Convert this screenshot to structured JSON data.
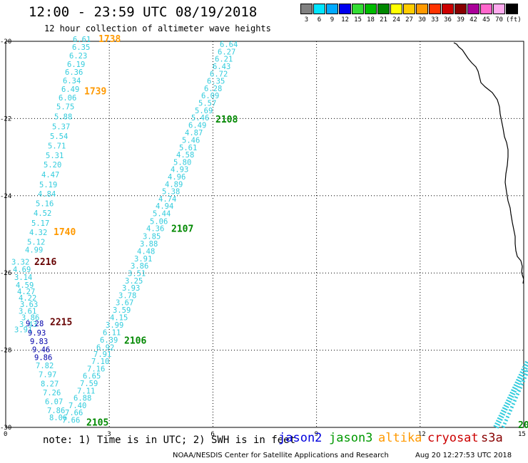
{
  "header": {
    "title": "12:00 - 23:59 UTC 08/19/2018",
    "subtitle": "12 hour collection of altimeter wave heights"
  },
  "legend": {
    "labels": [
      "3",
      "6",
      "9",
      "12",
      "15",
      "18",
      "21",
      "24",
      "27",
      "30",
      "33",
      "36",
      "39",
      "42",
      "45",
      "70",
      "(ft)"
    ],
    "colors": [
      "#808080",
      "#00e5ff",
      "#00aaff",
      "#0000ee",
      "#33dd33",
      "#00bb00",
      "#008800",
      "#ffff00",
      "#ffcc00",
      "#ff9900",
      "#ff3300",
      "#cc0000",
      "#880000",
      "#aa0099",
      "#ff66cc",
      "#ffaaee",
      "#000000"
    ]
  },
  "axes": {
    "x_ticks": [
      "0",
      "3",
      "6",
      "9",
      "12",
      "15"
    ],
    "y_ticks": [
      "20",
      "22",
      "24",
      "26",
      "28",
      "30"
    ]
  },
  "tracks": [
    {
      "id": "t1738",
      "color": "#33ccdd",
      "label": "1738",
      "label_color": "#ff9900",
      "label_lat": 20.02,
      "label_x": 138,
      "points": [
        [
          20.02,
          102,
          "6.61"
        ],
        [
          20.22,
          101,
          "6.35"
        ],
        [
          20.44,
          97,
          "6.23"
        ],
        [
          20.66,
          94,
          "6.19"
        ],
        [
          20.87,
          91,
          "6.36"
        ],
        [
          21.09,
          88,
          "6.34"
        ],
        [
          21.31,
          86,
          "6.49"
        ],
        [
          21.53,
          82,
          "6.06"
        ],
        [
          21.76,
          79,
          "5.75"
        ],
        [
          22.02,
          76,
          "5.88"
        ],
        [
          22.28,
          73,
          "5.37"
        ],
        [
          22.53,
          70,
          "5.54"
        ],
        [
          22.78,
          67,
          "5.71"
        ],
        [
          23.03,
          64,
          "5.31"
        ],
        [
          23.27,
          61,
          "5.20"
        ],
        [
          23.52,
          58,
          "4.47"
        ],
        [
          23.78,
          55,
          "5.19"
        ],
        [
          24.02,
          53,
          "4.84"
        ],
        [
          24.27,
          50,
          "5.16"
        ],
        [
          24.52,
          47,
          "4.52"
        ],
        [
          24.78,
          44,
          "5.17"
        ],
        [
          25.02,
          41,
          "4.32"
        ],
        [
          25.27,
          38,
          "5.12"
        ],
        [
          25.47,
          35,
          "4.99"
        ]
      ]
    },
    {
      "id": "t1739",
      "color": "#33ccdd",
      "label": "1739",
      "label_color": "#ff9900",
      "label_lat": 21.37,
      "label_x": 118,
      "points": []
    },
    {
      "id": "t1740",
      "color": "#33ccdd",
      "label": "1740",
      "label_color": "#ff9900",
      "label_lat": 25.02,
      "label_x": 75,
      "points": []
    },
    {
      "id": "t2108",
      "color": "#33ccdd",
      "label": "2108",
      "label_color": "#008800",
      "label_lat": 22.1,
      "label_x": 302,
      "points": [
        [
          20.15,
          308,
          "6.64"
        ],
        [
          20.34,
          305,
          "6.27"
        ],
        [
          20.53,
          301,
          "6.21"
        ],
        [
          20.72,
          298,
          "6.43"
        ],
        [
          20.91,
          294,
          "6.72"
        ],
        [
          21.1,
          290,
          "6.35"
        ],
        [
          21.29,
          286,
          "6.28"
        ],
        [
          21.48,
          282,
          "6.09"
        ],
        [
          21.67,
          278,
          "5.57"
        ],
        [
          21.86,
          273,
          "5.69"
        ],
        [
          22.05,
          268,
          "5.46"
        ],
        [
          22.24,
          264,
          "6.49"
        ],
        [
          22.44,
          259,
          "4.87"
        ],
        [
          22.63,
          255,
          "5.46"
        ],
        [
          22.82,
          251,
          "5.61"
        ],
        [
          23.01,
          247,
          "4.58"
        ],
        [
          23.2,
          243,
          "5.80"
        ],
        [
          23.39,
          239,
          "4.93"
        ],
        [
          23.58,
          235,
          "4.96"
        ],
        [
          23.77,
          231,
          "4.89"
        ],
        [
          23.96,
          227,
          "5.38"
        ],
        [
          24.15,
          222,
          "4.74"
        ],
        [
          24.34,
          218,
          "4.94"
        ],
        [
          24.53,
          214,
          "5.44"
        ],
        [
          24.73,
          210,
          "5.06"
        ],
        [
          24.92,
          205,
          "4.36"
        ]
      ]
    },
    {
      "id": "t2107",
      "color": "#33ccdd",
      "label": "2107",
      "label_color": "#008800",
      "label_lat": 24.94,
      "label_x": 240,
      "points": [
        [
          25.12,
          200,
          "3.85"
        ],
        [
          25.31,
          196,
          "3.88"
        ],
        [
          25.51,
          192,
          "4.48"
        ],
        [
          25.7,
          188,
          "3.91"
        ],
        [
          25.89,
          183,
          "3.86"
        ],
        [
          26.08,
          179,
          "3.51"
        ],
        [
          26.27,
          175,
          "3.25"
        ],
        [
          26.46,
          171,
          "3.93"
        ],
        [
          26.65,
          166,
          "3.78"
        ],
        [
          26.84,
          162,
          "3.67"
        ],
        [
          27.03,
          158,
          "3.59"
        ],
        [
          27.22,
          154,
          "4.15"
        ],
        [
          27.42,
          148,
          "3.99"
        ],
        [
          27.61,
          144,
          "6.11"
        ],
        [
          27.8,
          140,
          "6.39"
        ]
      ]
    },
    {
      "id": "t2106",
      "color": "#33ccdd",
      "label": "2106",
      "label_color": "#008800",
      "label_lat": 27.83,
      "label_x": 174,
      "points": [
        [
          28.0,
          135,
          "6.92"
        ],
        [
          28.17,
          131,
          "7.91"
        ],
        [
          28.36,
          128,
          "7.10"
        ],
        [
          28.55,
          122,
          "7.16"
        ],
        [
          28.74,
          116,
          "6.65"
        ],
        [
          28.93,
          112,
          "7.59"
        ],
        [
          29.12,
          108,
          "7.11"
        ],
        [
          29.31,
          103,
          "6.88"
        ],
        [
          29.5,
          96,
          "7.40"
        ],
        [
          29.69,
          91,
          "7.66"
        ],
        [
          29.88,
          87,
          "7.66"
        ]
      ]
    },
    {
      "id": "t2105",
      "color": "#33ccdd",
      "label": "2105",
      "label_color": "#008800",
      "label_lat": 29.95,
      "label_x": 121,
      "points": []
    },
    {
      "id": "t2215",
      "color": "#33ccdd",
      "label": "2215",
      "label_color": "#660000",
      "label_lat": 27.35,
      "label_x": 70,
      "points": [
        [
          25.78,
          16,
          "3.32"
        ],
        [
          25.98,
          18,
          "4.69"
        ],
        [
          26.18,
          20,
          "3.14"
        ],
        [
          26.38,
          22,
          "4.59"
        ],
        [
          26.55,
          24,
          "4.27"
        ],
        [
          26.72,
          26,
          "4.22"
        ],
        [
          26.88,
          28,
          "3.63"
        ],
        [
          27.06,
          26,
          "3.61"
        ],
        [
          27.22,
          30,
          "3.86"
        ],
        [
          27.4,
          27,
          "3.43"
        ],
        [
          27.54,
          20,
          "3.91"
        ]
      ]
    },
    {
      "id": "t2216",
      "color": "#0000aa",
      "label": "2216",
      "label_color": "#660000",
      "label_lat": 25.79,
      "label_x": 48,
      "points": [
        [
          27.38,
          36,
          "9.28"
        ],
        [
          27.62,
          39,
          "9.93"
        ],
        [
          27.84,
          42,
          "9.83"
        ],
        [
          28.05,
          45,
          "9.46"
        ],
        [
          28.26,
          48,
          "9.86"
        ]
      ]
    },
    {
      "id": "tjason3lower",
      "color": "#33ccdd",
      "label": "",
      "label_color": "#008800",
      "label_lat": 0,
      "label_x": 0,
      "points": [
        [
          28.47,
          50,
          "7.82"
        ],
        [
          28.7,
          54,
          "7.97"
        ],
        [
          28.94,
          57,
          "8.27"
        ],
        [
          29.17,
          60,
          "7.26"
        ],
        [
          29.4,
          63,
          "6.07"
        ],
        [
          29.63,
          66,
          "7.86"
        ],
        [
          29.82,
          69,
          "8.06"
        ]
      ]
    }
  ],
  "corner_track": {
    "label": "20",
    "label_color": "#008800"
  },
  "footer": {
    "note": "note: 1) Time is in UTC; 2) SWH is in feet",
    "satellites": [
      {
        "name": "jason2",
        "color": "#0000dd"
      },
      {
        "name": "jason3",
        "color": "#009900"
      },
      {
        "name": "altika",
        "color": "#ff9900"
      },
      {
        "name": "cryosat",
        "color": "#cc0000"
      },
      {
        "name": "s3a",
        "color": "#880000"
      }
    ],
    "credit": "NOAA/NESDIS Center for Satellite Applications and Research",
    "timestamp": "Aug 20 12:27:53 UTC 2018"
  }
}
